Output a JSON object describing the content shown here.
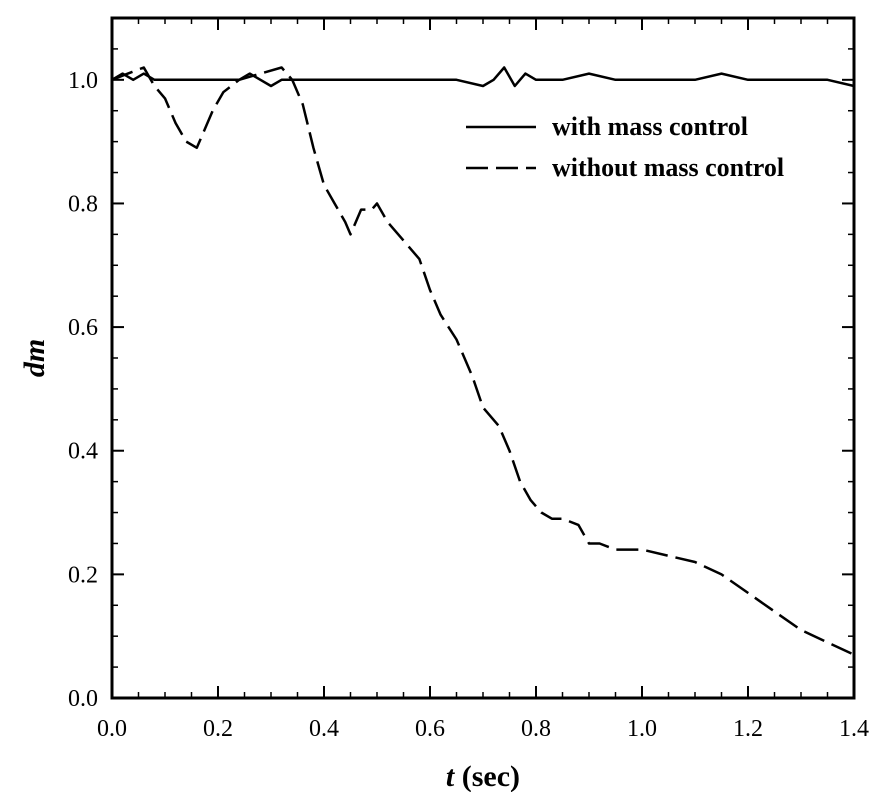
{
  "chart_data": {
    "type": "line",
    "xlabel_var": "t",
    "xlabel_unit": " (sec)",
    "ylabel": "dm",
    "xlim": [
      0.0,
      1.4
    ],
    "ylim": [
      0.0,
      1.1
    ],
    "x_ticks": [
      "0.0",
      "0.2",
      "0.4",
      "0.6",
      "0.8",
      "1.0",
      "1.2",
      "1.4"
    ],
    "y_ticks": [
      "0.0",
      "0.2",
      "0.4",
      "0.6",
      "0.8",
      "1.0"
    ],
    "grid": false,
    "legend_position": "top-right",
    "series": [
      {
        "name": "with mass control",
        "style": "solid",
        "color": "#000000",
        "x": [
          0.0,
          0.02,
          0.04,
          0.06,
          0.08,
          0.1,
          0.12,
          0.14,
          0.16,
          0.18,
          0.2,
          0.22,
          0.24,
          0.26,
          0.28,
          0.3,
          0.32,
          0.34,
          0.36,
          0.38,
          0.4,
          0.45,
          0.5,
          0.55,
          0.6,
          0.65,
          0.7,
          0.72,
          0.74,
          0.76,
          0.78,
          0.8,
          0.85,
          0.9,
          0.95,
          1.0,
          1.05,
          1.1,
          1.15,
          1.2,
          1.25,
          1.3,
          1.35,
          1.4
        ],
        "values": [
          1.0,
          1.01,
          1.0,
          1.01,
          1.0,
          1.0,
          1.0,
          1.0,
          1.0,
          1.0,
          1.0,
          1.0,
          1.0,
          1.01,
          1.0,
          0.99,
          1.0,
          1.0,
          1.0,
          1.0,
          1.0,
          1.0,
          1.0,
          1.0,
          1.0,
          1.0,
          0.99,
          1.0,
          1.02,
          0.99,
          1.01,
          1.0,
          1.0,
          1.01,
          1.0,
          1.0,
          1.0,
          1.0,
          1.01,
          1.0,
          1.0,
          1.0,
          1.0,
          0.99
        ]
      },
      {
        "name": "without mass control",
        "style": "dashed",
        "color": "#000000",
        "x": [
          0.0,
          0.03,
          0.06,
          0.08,
          0.1,
          0.12,
          0.14,
          0.16,
          0.17,
          0.19,
          0.21,
          0.24,
          0.28,
          0.32,
          0.34,
          0.36,
          0.38,
          0.4,
          0.42,
          0.44,
          0.45,
          0.47,
          0.49,
          0.5,
          0.52,
          0.55,
          0.58,
          0.6,
          0.62,
          0.65,
          0.68,
          0.7,
          0.73,
          0.75,
          0.77,
          0.79,
          0.81,
          0.83,
          0.85,
          0.88,
          0.9,
          0.92,
          0.95,
          1.0,
          1.05,
          1.1,
          1.15,
          1.2,
          1.25,
          1.3,
          1.35,
          1.4
        ],
        "values": [
          1.0,
          1.01,
          1.02,
          0.99,
          0.97,
          0.93,
          0.9,
          0.89,
          0.91,
          0.95,
          0.98,
          1.0,
          1.01,
          1.02,
          1.0,
          0.96,
          0.89,
          0.83,
          0.8,
          0.77,
          0.75,
          0.79,
          0.79,
          0.8,
          0.77,
          0.74,
          0.71,
          0.66,
          0.62,
          0.58,
          0.52,
          0.47,
          0.44,
          0.4,
          0.35,
          0.32,
          0.3,
          0.29,
          0.29,
          0.28,
          0.25,
          0.25,
          0.24,
          0.24,
          0.23,
          0.22,
          0.2,
          0.17,
          0.14,
          0.11,
          0.09,
          0.07
        ]
      }
    ]
  }
}
